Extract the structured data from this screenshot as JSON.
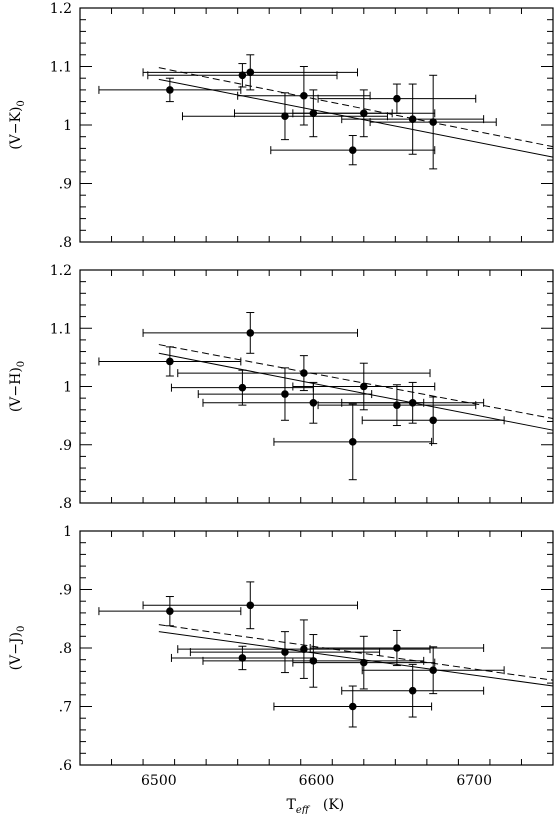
{
  "chart_data": [
    {
      "type": "scatter",
      "ylabel": "(V−K)",
      "ylabel_sub": "0",
      "xlim": [
        6450,
        6750
      ],
      "ylim": [
        0.8,
        1.2
      ],
      "x_ticks": [
        6500,
        6600,
        6700
      ],
      "y_ticks": [
        0.8,
        0.9,
        1.0,
        1.1,
        1.2
      ],
      "y_tick_labels": [
        ".8",
        ".9",
        "1",
        "1.1",
        "1.2"
      ],
      "points": [
        {
          "x": 6507,
          "y": 1.06,
          "xerr": 45,
          "yerr": 0.02
        },
        {
          "x": 6553,
          "y": 1.085,
          "xerr": 60,
          "yerr": 0.02
        },
        {
          "x": 6558,
          "y": 1.09,
          "xerr": 68,
          "yerr": 0.03
        },
        {
          "x": 6580,
          "y": 1.015,
          "xerr": 65,
          "yerr": 0.04
        },
        {
          "x": 6592,
          "y": 1.05,
          "xerr": 42,
          "yerr": 0.05
        },
        {
          "x": 6598,
          "y": 1.02,
          "xerr": 50,
          "yerr": 0.04
        },
        {
          "x": 6623,
          "y": 0.957,
          "xerr": 52,
          "yerr": 0.025
        },
        {
          "x": 6630,
          "y": 1.02,
          "xerr": 45,
          "yerr": 0.04
        },
        {
          "x": 6651,
          "y": 1.045,
          "xerr": 50,
          "yerr": 0.025
        },
        {
          "x": 6661,
          "y": 1.01,
          "xerr": 45,
          "yerr": 0.06
        },
        {
          "x": 6674,
          "y": 1.005,
          "xerr": 40,
          "yerr": 0.08
        }
      ],
      "fits": [
        {
          "style": "solid",
          "x": [
            6500,
            6750
          ],
          "y": [
            1.078,
            0.945
          ]
        },
        {
          "style": "dashed",
          "x": [
            6500,
            6750
          ],
          "y": [
            1.098,
            0.963
          ]
        }
      ]
    },
    {
      "type": "scatter",
      "ylabel": "(V−H)",
      "ylabel_sub": "0",
      "xlim": [
        6450,
        6750
      ],
      "ylim": [
        0.8,
        1.2
      ],
      "x_ticks": [
        6500,
        6600,
        6700
      ],
      "y_ticks": [
        0.8,
        0.9,
        1.0,
        1.1,
        1.2
      ],
      "y_tick_labels": [
        ".8",
        ".9",
        "1",
        "1.1",
        "1.2"
      ],
      "points": [
        {
          "x": 6507,
          "y": 1.043,
          "xerr": 45,
          "yerr": 0.025
        },
        {
          "x": 6553,
          "y": 0.998,
          "xerr": 45,
          "yerr": 0.03
        },
        {
          "x": 6558,
          "y": 1.092,
          "xerr": 68,
          "yerr": 0.035
        },
        {
          "x": 6580,
          "y": 0.987,
          "xerr": 55,
          "yerr": 0.045
        },
        {
          "x": 6592,
          "y": 1.023,
          "xerr": 80,
          "yerr": 0.03
        },
        {
          "x": 6598,
          "y": 0.972,
          "xerr": 70,
          "yerr": 0.035
        },
        {
          "x": 6623,
          "y": 0.905,
          "xerr": 50,
          "yerr": 0.065
        },
        {
          "x": 6630,
          "y": 1.0,
          "xerr": 45,
          "yerr": 0.04
        },
        {
          "x": 6651,
          "y": 0.968,
          "xerr": 50,
          "yerr": 0.035
        },
        {
          "x": 6661,
          "y": 0.972,
          "xerr": 45,
          "yerr": 0.035
        },
        {
          "x": 6674,
          "y": 0.942,
          "xerr": 45,
          "yerr": 0.04
        }
      ],
      "fits": [
        {
          "style": "solid",
          "x": [
            6500,
            6750
          ],
          "y": [
            1.057,
            0.925
          ]
        },
        {
          "style": "dashed",
          "x": [
            6500,
            6750
          ],
          "y": [
            1.072,
            0.945
          ]
        }
      ]
    },
    {
      "type": "scatter",
      "ylabel": "(V−J)",
      "ylabel_sub": "0",
      "xlabel": "T",
      "xlabel_sub": "eff",
      "xlabel_unit": "(K)",
      "xlim": [
        6450,
        6750
      ],
      "ylim": [
        0.6,
        1.0
      ],
      "x_ticks": [
        6500,
        6600,
        6700
      ],
      "y_ticks": [
        0.6,
        0.7,
        0.8,
        0.9,
        1.0
      ],
      "y_tick_labels": [
        ".6",
        ".7",
        ".8",
        ".9",
        "1"
      ],
      "points": [
        {
          "x": 6507,
          "y": 0.863,
          "xerr": 45,
          "yerr": 0.025
        },
        {
          "x": 6553,
          "y": 0.783,
          "xerr": 45,
          "yerr": 0.02
        },
        {
          "x": 6558,
          "y": 0.873,
          "xerr": 68,
          "yerr": 0.04
        },
        {
          "x": 6580,
          "y": 0.793,
          "xerr": 60,
          "yerr": 0.035
        },
        {
          "x": 6592,
          "y": 0.798,
          "xerr": 80,
          "yerr": 0.05
        },
        {
          "x": 6598,
          "y": 0.778,
          "xerr": 70,
          "yerr": 0.045
        },
        {
          "x": 6623,
          "y": 0.7,
          "xerr": 50,
          "yerr": 0.035
        },
        {
          "x": 6630,
          "y": 0.775,
          "xerr": 45,
          "yerr": 0.045
        },
        {
          "x": 6651,
          "y": 0.8,
          "xerr": 55,
          "yerr": 0.03
        },
        {
          "x": 6661,
          "y": 0.727,
          "xerr": 45,
          "yerr": 0.045
        },
        {
          "x": 6674,
          "y": 0.762,
          "xerr": 45,
          "yerr": 0.04
        }
      ],
      "fits": [
        {
          "style": "solid",
          "x": [
            6500,
            6750
          ],
          "y": [
            0.828,
            0.735
          ]
        },
        {
          "style": "dashed",
          "x": [
            6500,
            6750
          ],
          "y": [
            0.84,
            0.745
          ]
        }
      ]
    }
  ]
}
